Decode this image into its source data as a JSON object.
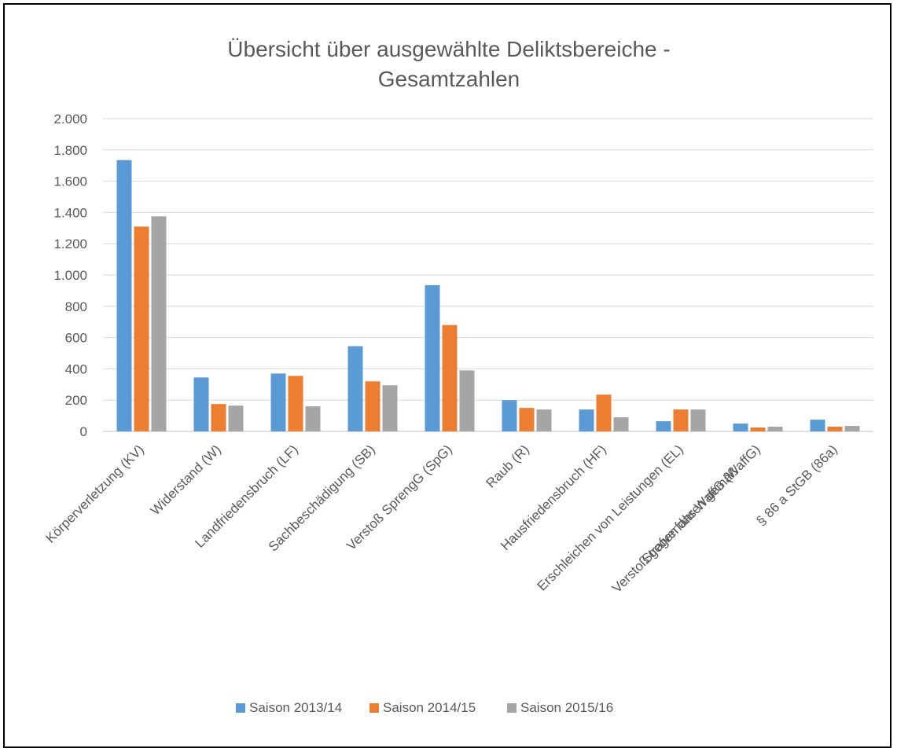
{
  "chart_data": {
    "type": "bar",
    "title": [
      "Übersicht über ausgewählte Deliktsbereiche -",
      "Gesamtzahlen"
    ],
    "xlabel": "",
    "ylabel": "",
    "ylim": [
      0,
      2000
    ],
    "yticks": [
      0,
      200,
      400,
      600,
      800,
      1000,
      1200,
      1400,
      1600,
      1800,
      2000
    ],
    "ytick_labels": [
      "0",
      "200",
      "400",
      "600",
      "800",
      "1.000",
      "1.200",
      "1.400",
      "1.600",
      "1.800",
      "2.000"
    ],
    "grid": true,
    "legend_position": "bottom",
    "categories": [
      "Körperverletzung (KV)",
      "Widerstand (W)",
      "Landfriedensbruch (LF)",
      "Sachbeschädigung (SB)",
      "Verstoß SprengG (SpG)",
      "Raub (R)",
      "Hausfriedensbruch (HF)",
      "Erschleichen von Leistungen (EL)",
      "Verstoß gegen das WaffG (WaffG)",
      "§ 86 a StGB  (86a)"
    ],
    "extra_category_lines": {
      "8": "Strafverfahren gemäß"
    },
    "series": [
      {
        "name": "Saison 2013/14",
        "color": "#5b9bd5",
        "values": [
          1735,
          345,
          370,
          545,
          935,
          200,
          140,
          65,
          50,
          75
        ]
      },
      {
        "name": "Saison 2014/15",
        "color": "#ed7d31",
        "values": [
          1310,
          175,
          355,
          320,
          680,
          150,
          235,
          140,
          25,
          30
        ]
      },
      {
        "name": "Saison 2015/16",
        "color": "#a5a5a5",
        "values": [
          1375,
          165,
          160,
          295,
          390,
          140,
          90,
          140,
          30,
          35
        ]
      }
    ]
  }
}
